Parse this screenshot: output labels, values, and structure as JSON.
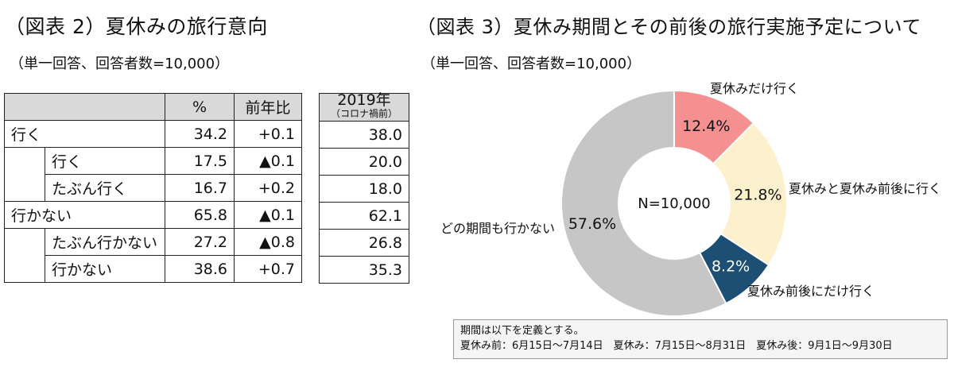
{
  "left": {
    "title": "（図表 2）夏休みの旅行意向",
    "subtitle": "（単一回答、回答者数=10,000）",
    "headers": {
      "percent": "%",
      "yoy": "前年比",
      "y2019": "2019年",
      "y2019_sub": "（コロナ禍前）"
    },
    "rows": [
      {
        "label": "行く",
        "percent": "34.2",
        "yoy": "+0.1",
        "y2019": "38.0"
      },
      {
        "label": "行く",
        "percent": "17.5",
        "yoy": "▲0.1",
        "y2019": "20.0"
      },
      {
        "label": "たぶん行く",
        "percent": "16.7",
        "yoy": "+0.2",
        "y2019": "18.0"
      },
      {
        "label": "行かない",
        "percent": "65.8",
        "yoy": "▲0.1",
        "y2019": "62.1"
      },
      {
        "label": "たぶん行かない",
        "percent": "27.2",
        "yoy": "▲0.8",
        "y2019": "26.8"
      },
      {
        "label": "行かない",
        "percent": "38.6",
        "yoy": "+0.7",
        "y2019": "35.3"
      }
    ]
  },
  "right": {
    "title": "（図表 3）夏休み期間とその前後の旅行実施予定について",
    "subtitle": "（単一回答、回答者数=10,000）",
    "center_label": "N=10,000",
    "note_line1": "期間は以下を定義とする。",
    "note_line2": "夏休み前：6月15日～7月14日　夏休み：7月15日～8月31日　夏休み後：9月1日～9月30日"
  },
  "chart_data": {
    "type": "pie",
    "donut": true,
    "categories": [
      "夏休みだけ行く",
      "夏休みと夏休み前後に行く",
      "夏休み前後にだけ行く",
      "どの期間も行かない"
    ],
    "values": [
      12.4,
      21.8,
      8.2,
      57.6
    ],
    "value_labels": [
      "12.4%",
      "21.8%",
      "8.2%",
      "57.6%"
    ],
    "colors": [
      "#f49090",
      "#fdf0cc",
      "#1c4f73",
      "#c6c6c6"
    ],
    "label_colors": [
      "#111111",
      "#111111",
      "#ffffff",
      "#111111"
    ]
  }
}
